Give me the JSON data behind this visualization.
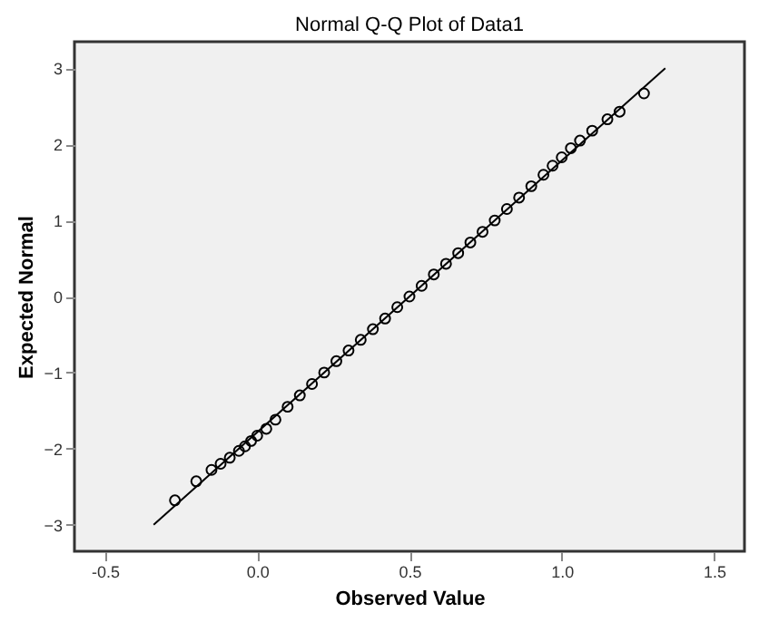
{
  "chart_data": {
    "type": "scatter",
    "title": "Normal Q-Q Plot of Data1",
    "xlabel": "Observed Value",
    "ylabel": "Expected Normal",
    "xlim": [
      -0.6,
      1.6
    ],
    "xticks": [
      {
        "value": -0.5,
        "label": "-0.5"
      },
      {
        "value": 0,
        "label": "0.0"
      },
      {
        "value": 0.5,
        "label": "0.5"
      },
      {
        "value": 1,
        "label": "1.0"
      },
      {
        "value": 1.5,
        "label": "1.5"
      }
    ],
    "ylim": [
      -3.35,
      3.35
    ],
    "yticks": [
      -3,
      -2,
      -1,
      0,
      1,
      2,
      3
    ],
    "grid": false,
    "marker": "circle",
    "series": [
      {
        "type": "scatter",
        "color": "#000000",
        "x": [
          -0.27,
          -0.2,
          -0.15,
          -0.12,
          -0.09,
          -0.06,
          -0.04,
          -0.02,
          0.0,
          0.03,
          0.06,
          0.1,
          0.14,
          0.18,
          0.22,
          0.26,
          0.3,
          0.34,
          0.38,
          0.42,
          0.46,
          0.5,
          0.54,
          0.58,
          0.62,
          0.66,
          0.7,
          0.74,
          0.78,
          0.82,
          0.86,
          0.9,
          0.94,
          0.97,
          1.0,
          1.03,
          1.06,
          1.1,
          1.15,
          1.19,
          1.27
        ],
        "values": [
          -2.68,
          -2.43,
          -2.28,
          -2.2,
          -2.12,
          -2.03,
          -1.97,
          -1.9,
          -1.83,
          -1.74,
          -1.62,
          -1.45,
          -1.3,
          -1.15,
          -1.0,
          -0.85,
          -0.71,
          -0.57,
          -0.43,
          -0.29,
          -0.14,
          0.0,
          0.14,
          0.29,
          0.43,
          0.57,
          0.71,
          0.85,
          1.0,
          1.15,
          1.3,
          1.45,
          1.6,
          1.72,
          1.83,
          1.95,
          2.05,
          2.18,
          2.33,
          2.43,
          2.67
        ]
      },
      {
        "type": "line",
        "color": "#000000",
        "x": [
          -0.34,
          1.34
        ],
        "values": [
          -3.0,
          3.0
        ],
        "line_style": "solid",
        "marker": "none"
      }
    ]
  }
}
